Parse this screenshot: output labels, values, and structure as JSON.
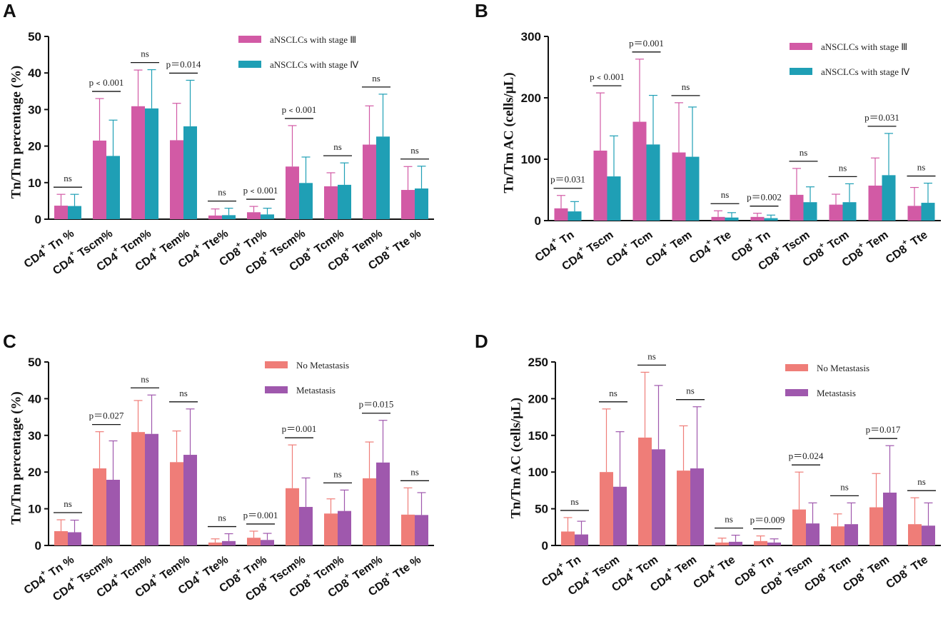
{
  "chart_data": [
    {
      "type": "bar",
      "panel": "A",
      "ylabel": "Tn/Tm percentage (%)",
      "ylim": [
        0,
        50
      ],
      "yticks": [
        0,
        10,
        20,
        30,
        40,
        50
      ],
      "categories": [
        {
          "base": "CD4",
          "sup": "+",
          "rest": " Tn %"
        },
        {
          "base": "CD4",
          "sup": "+",
          "rest": " Tscm%"
        },
        {
          "base": "CD4",
          "sup": "+",
          "rest": " Tcm%"
        },
        {
          "base": "CD4",
          "sup": "+",
          "rest": " Tem%"
        },
        {
          "base": "CD4",
          "sup": "+",
          "rest": " Tte%"
        },
        {
          "base": "CD8",
          "sup": "+",
          "rest": " Tn%"
        },
        {
          "base": "CD8",
          "sup": "+",
          "rest": " Tscm%"
        },
        {
          "base": "CD8",
          "sup": "+",
          "rest": " Tcm%"
        },
        {
          "base": "CD8",
          "sup": "+",
          "rest": " Tem%"
        },
        {
          "base": "CD8",
          "sup": "+",
          "rest": " Tte %"
        }
      ],
      "series": [
        {
          "name": "aNSCLCs with stage Ⅲ",
          "color": "#d25aa5",
          "values": [
            3.7,
            21.5,
            30.9,
            21.6,
            1.0,
            1.9,
            14.4,
            9.0,
            20.4,
            8.0
          ],
          "errors": [
            3.1,
            11.5,
            9.9,
            10.1,
            1.8,
            1.6,
            11.2,
            3.7,
            10.6,
            6.4
          ]
        },
        {
          "name": "aNSCLCs with stage Ⅳ",
          "color": "#1f9fb5",
          "values": [
            3.6,
            17.3,
            30.3,
            25.4,
            1.1,
            1.3,
            9.9,
            9.4,
            22.6,
            8.4
          ],
          "errors": [
            3.2,
            9.8,
            10.6,
            12.6,
            1.9,
            1.7,
            7.1,
            6.0,
            11.6,
            6.1
          ]
        }
      ],
      "significance": [
        "ns",
        "p﹤0.001",
        "ns",
        "p＝0.014",
        "ns",
        "p﹤0.001",
        "p﹤0.001",
        "ns",
        "ns",
        "ns"
      ]
    },
    {
      "type": "bar",
      "panel": "B",
      "ylabel": "Tn/Tm AC (cells/μL)",
      "ylim": [
        0,
        300
      ],
      "yticks": [
        0,
        100,
        200,
        300
      ],
      "categories": [
        {
          "base": "CD4",
          "sup": "+",
          "rest": " Tn"
        },
        {
          "base": "CD4",
          "sup": "+",
          "rest": " Tscm"
        },
        {
          "base": "CD4",
          "sup": "+",
          "rest": " Tcm"
        },
        {
          "base": "CD4",
          "sup": "+",
          "rest": " Tem"
        },
        {
          "base": "CD4",
          "sup": "+",
          "rest": " Tte"
        },
        {
          "base": "CD8",
          "sup": "+",
          "rest": " Tn"
        },
        {
          "base": "CD8",
          "sup": "+",
          "rest": " Tscm"
        },
        {
          "base": "CD8",
          "sup": "+",
          "rest": " Tcm"
        },
        {
          "base": "CD8",
          "sup": "+",
          "rest": " Tem"
        },
        {
          "base": "CD8",
          "sup": "+",
          "rest": " Tte"
        }
      ],
      "series": [
        {
          "name": "aNSCLCs with stage Ⅲ",
          "color": "#d25aa5",
          "values": [
            20,
            114,
            161,
            111,
            6,
            6,
            42,
            26,
            57,
            24
          ],
          "errors": [
            21,
            94,
            102,
            81,
            10,
            6,
            43,
            17,
            45,
            30
          ]
        },
        {
          "name": "aNSCLCs with stage Ⅳ",
          "color": "#1f9fb5",
          "values": [
            15,
            72,
            124,
            104,
            5,
            4,
            30,
            30,
            74,
            29
          ],
          "errors": [
            16,
            66,
            80,
            81,
            8,
            5,
            25,
            30,
            68,
            32
          ]
        }
      ],
      "significance": [
        "p＝0.031",
        "p﹤0.001",
        "p＝0.001",
        "ns",
        "ns",
        "p＝0.002",
        "ns",
        "ns",
        "p＝0.031",
        "ns"
      ]
    },
    {
      "type": "bar",
      "panel": "C",
      "ylabel": "Tn/Tm percentage (%)",
      "ylim": [
        0,
        50
      ],
      "yticks": [
        0,
        10,
        20,
        30,
        40,
        50
      ],
      "categories": [
        {
          "base": "CD4",
          "sup": "+",
          "rest": " Tn %"
        },
        {
          "base": "CD4",
          "sup": "+",
          "rest": " Tscm%"
        },
        {
          "base": "CD4",
          "sup": "+",
          "rest": " Tcm%"
        },
        {
          "base": "CD4",
          "sup": "+",
          "rest": " Tem%"
        },
        {
          "base": "CD4",
          "sup": "+",
          "rest": " Tte%"
        },
        {
          "base": "CD8",
          "sup": "+",
          "rest": " Tn%"
        },
        {
          "base": "CD8",
          "sup": "+",
          "rest": " Tscm%"
        },
        {
          "base": "CD8",
          "sup": "+",
          "rest": " Tcm%"
        },
        {
          "base": "CD8",
          "sup": "+",
          "rest": " Tem%"
        },
        {
          "base": "CD8",
          "sup": "+",
          "rest": " Tte %"
        }
      ],
      "series": [
        {
          "name": "No Metastasis",
          "color": "#ef7d78",
          "values": [
            3.9,
            21.0,
            30.9,
            22.7,
            0.8,
            2.1,
            15.6,
            8.7,
            18.3,
            8.4
          ],
          "errors": [
            3.1,
            10.0,
            8.6,
            8.5,
            1.0,
            1.8,
            11.8,
            4.0,
            9.9,
            7.3
          ]
        },
        {
          "name": "Metastasis",
          "color": "#9f58ad",
          "values": [
            3.6,
            17.9,
            30.4,
            24.7,
            1.2,
            1.5,
            10.5,
            9.4,
            22.6,
            8.3
          ],
          "errors": [
            3.3,
            10.6,
            10.6,
            12.5,
            2.0,
            1.8,
            7.9,
            5.7,
            11.5,
            6.1
          ]
        }
      ],
      "significance": [
        "ns",
        "p＝0.027",
        "ns",
        "ns",
        "ns",
        "p＝0.001",
        "p＝0.001",
        "ns",
        "p＝0.015",
        "ns"
      ]
    },
    {
      "type": "bar",
      "panel": "D",
      "ylabel": "Tn/Tm AC (cells/μL)",
      "ylim": [
        0,
        250
      ],
      "yticks": [
        0,
        50,
        100,
        150,
        200,
        250
      ],
      "categories": [
        {
          "base": "CD4",
          "sup": "+",
          "rest": " Tn"
        },
        {
          "base": "CD4",
          "sup": "+",
          "rest": " Tscm"
        },
        {
          "base": "CD4",
          "sup": "+",
          "rest": " Tcm"
        },
        {
          "base": "CD4",
          "sup": "+",
          "rest": " Tem"
        },
        {
          "base": "CD4",
          "sup": "+",
          "rest": " Tte"
        },
        {
          "base": "CD8",
          "sup": "+",
          "rest": " Tn"
        },
        {
          "base": "CD8",
          "sup": "+",
          "rest": " Tscm"
        },
        {
          "base": "CD8",
          "sup": "+",
          "rest": " Tcm"
        },
        {
          "base": "CD8",
          "sup": "+",
          "rest": " Tem"
        },
        {
          "base": "CD8",
          "sup": "+",
          "rest": " Tte"
        }
      ],
      "series": [
        {
          "name": "No Metastasis",
          "color": "#ef7d78",
          "values": [
            19,
            100,
            147,
            102,
            4,
            6,
            49,
            26,
            52,
            29
          ],
          "errors": [
            19,
            86,
            89,
            61,
            6,
            7,
            51,
            17,
            46,
            36
          ]
        },
        {
          "name": "Metastasis",
          "color": "#9f58ad",
          "values": [
            15,
            80,
            131,
            105,
            5,
            4,
            30,
            29,
            72,
            27
          ],
          "errors": [
            18,
            75,
            87,
            84,
            9,
            5,
            28,
            29,
            64,
            31
          ]
        }
      ],
      "significance": [
        "ns",
        "ns",
        "ns",
        "ns",
        "ns",
        "p＝0.009",
        "p＝0.024",
        "ns",
        "p＝0.017",
        "ns"
      ]
    }
  ]
}
